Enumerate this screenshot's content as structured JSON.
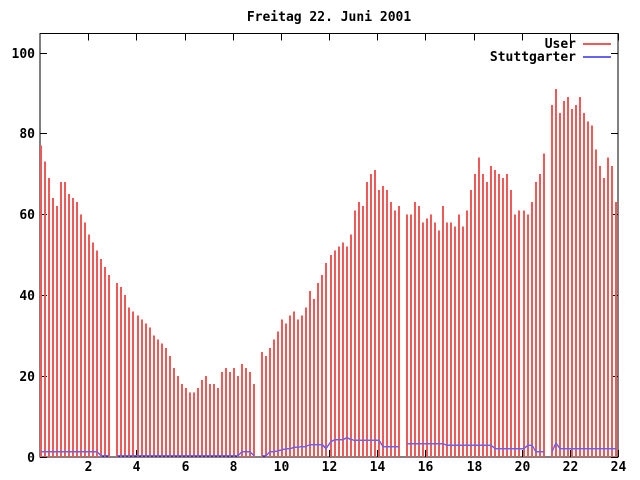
{
  "chart_data": {
    "type": "bar",
    "title": "Freitag 22. Juni 2001",
    "xlabel": "",
    "ylabel": "",
    "x_start": 0,
    "x_end": 24,
    "sample_interval_minutes": 10,
    "x_ticks": [
      2,
      4,
      6,
      8,
      10,
      12,
      14,
      16,
      18,
      20,
      22,
      24
    ],
    "y_ticks": [
      0,
      20,
      40,
      60,
      80,
      100
    ],
    "ylim": [
      0,
      104.7
    ],
    "grid": false,
    "legend_position": "top-right",
    "series": [
      {
        "name": "User",
        "style": "impulses",
        "color": "#f25855",
        "values": [
          77,
          73,
          69,
          64,
          62,
          68,
          68,
          65,
          64,
          63,
          60,
          58,
          55,
          53,
          51,
          49,
          47,
          45,
          null,
          43,
          42,
          40,
          37,
          36,
          35,
          34,
          33,
          32,
          30,
          29,
          28,
          27,
          25,
          22,
          20,
          18,
          17,
          16,
          16,
          17,
          19,
          20,
          18,
          18,
          17,
          21,
          22,
          21,
          22,
          20,
          23,
          22,
          21,
          18,
          null,
          26,
          25,
          27,
          29,
          31,
          34,
          33,
          35,
          36,
          34,
          35,
          37,
          41,
          39,
          43,
          45,
          48,
          50,
          51,
          52,
          53,
          52,
          55,
          61,
          63,
          62,
          68,
          70,
          71,
          66,
          67,
          66,
          63,
          61,
          62,
          null,
          60,
          60,
          63,
          62,
          58,
          59,
          60,
          58,
          56,
          62,
          58,
          58,
          57,
          60,
          57,
          61,
          66,
          70,
          74,
          70,
          68,
          72,
          71,
          70,
          69,
          70,
          66,
          60,
          61,
          61,
          60,
          63,
          68,
          70,
          75,
          null,
          87,
          91,
          85,
          88,
          89,
          86,
          87,
          89,
          85,
          83,
          82,
          76,
          72,
          69,
          74,
          72,
          63
        ]
      },
      {
        "name": "Stuttgarter",
        "style": "line",
        "color": "#6464f0",
        "values": [
          1.3,
          1.3,
          1.3,
          1.3,
          1.3,
          1.3,
          1.3,
          1.3,
          1.3,
          1.3,
          1.3,
          1.3,
          1.3,
          1.3,
          1.3,
          0.3,
          0.3,
          0.3,
          null,
          0.3,
          0.3,
          0.3,
          0.3,
          0.3,
          0.3,
          0.3,
          0.3,
          0.3,
          0.3,
          0.3,
          0.3,
          0.3,
          0.3,
          0.3,
          0.3,
          0.3,
          0.3,
          0.3,
          0.3,
          0.3,
          0.3,
          0.3,
          0.3,
          0.3,
          0.3,
          0.3,
          0.3,
          0.3,
          0.3,
          0.3,
          1.3,
          1.3,
          1.3,
          0.3,
          null,
          0.3,
          0.3,
          1.3,
          1.3,
          1.5,
          1.8,
          2,
          2,
          2.4,
          2.4,
          2.6,
          2.6,
          3.1,
          3.1,
          3.1,
          3.1,
          2.1,
          3.8,
          4.3,
          4.3,
          4.3,
          4.8,
          4.3,
          4.1,
          4.1,
          4.1,
          4.1,
          4.1,
          4.1,
          4.1,
          2.6,
          2.6,
          2.6,
          2.6,
          2.6,
          null,
          3.3,
          3.3,
          3.3,
          3.3,
          3.3,
          3.3,
          3.3,
          3.3,
          3.3,
          3.3,
          2.9,
          2.9,
          2.9,
          2.9,
          2.9,
          2.9,
          2.9,
          2.9,
          2.9,
          2.9,
          2.9,
          2.9,
          2.1,
          2.1,
          2.1,
          2.1,
          2.1,
          2.1,
          2.1,
          2.1,
          2.9,
          2.9,
          1.3,
          1.3,
          1.3,
          null,
          1.3,
          3.4,
          2.1,
          2.1,
          2.1,
          2.1,
          2.1,
          2.1,
          2.1,
          2.1,
          2.1,
          2.1,
          2.1,
          2.1,
          2.1,
          2.1,
          2.1
        ]
      }
    ]
  }
}
